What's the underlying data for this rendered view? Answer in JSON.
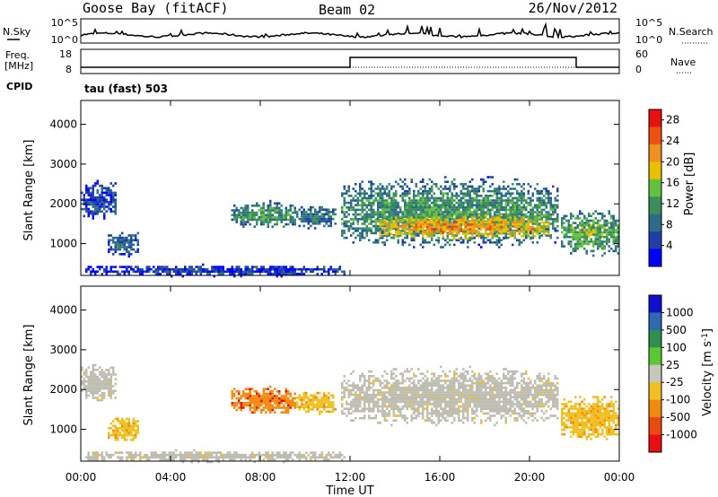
{
  "header": {
    "station": "Goose Bay (fitACF)",
    "beam": "Beam 02",
    "date": "26/Nov/2012"
  },
  "noise_panel": {
    "left_label": "N.Sky",
    "left_ticks": [
      "10^5",
      "10^0"
    ],
    "right_ticks": [
      "10^5",
      "10^0"
    ],
    "right_label": "N.Search"
  },
  "freq_panel": {
    "left_label_1": "Freq.",
    "left_label_2": "[MHz]",
    "left_ticks": [
      "18",
      "8"
    ],
    "right_ticks": [
      "60",
      "0"
    ],
    "right_label": "Nave",
    "cpid_label": "CPID",
    "cpid_value": "tau (fast) 503"
  },
  "colors": {
    "power": [
      "#0000ff",
      "#1f3fa8",
      "#2e6a8a",
      "#3a8f5a",
      "#66c040",
      "#e7c000",
      "#f09020",
      "#ee5010",
      "#e81010"
    ],
    "velocity": [
      "#1010d0",
      "#2e6ab0",
      "#2f8f4f",
      "#5ac832",
      "#c7c7bd",
      "#f0c020",
      "#f08a10",
      "#e84a10",
      "#e81010"
    ],
    "ground_scatter": "#bdbdb2",
    "frame": "#000000"
  },
  "chart_data": [
    {
      "type": "heatmap",
      "title": "",
      "quantity": "Power",
      "xlabel": "",
      "ylabel": "Slant Range [km]",
      "x_ticks": [
        "00:00",
        "04:00",
        "08:00",
        "12:00",
        "16:00",
        "20:00",
        "00:00"
      ],
      "xlim_hours": [
        0,
        24
      ],
      "y_ticks": [
        "1000",
        "2000",
        "3000",
        "4000"
      ],
      "ylim_km": [
        200,
        4600
      ],
      "colorbar_label": "Power [dB]",
      "colorbar_ticks": [
        "4",
        "8",
        "12",
        "16",
        "20",
        "24",
        "28"
      ],
      "colorbar_range": [
        0,
        30
      ],
      "regions": [
        {
          "t": [
            0.0,
            1.6
          ],
          "range_km": [
            1600,
            2600
          ],
          "value": 6
        },
        {
          "t": [
            1.2,
            2.6
          ],
          "range_km": [
            700,
            1350
          ],
          "value": 8
        },
        {
          "t": [
            0.2,
            11.8
          ],
          "range_km": [
            200,
            500
          ],
          "value": 5
        },
        {
          "t": [
            6.7,
            9.6
          ],
          "range_km": [
            1400,
            2100
          ],
          "value": 12
        },
        {
          "t": [
            9.6,
            11.4
          ],
          "range_km": [
            1400,
            2000
          ],
          "value": 10
        },
        {
          "t": [
            11.6,
            21.3
          ],
          "range_km": [
            900,
            2700
          ],
          "value": 12
        },
        {
          "t": [
            13.3,
            20.9
          ],
          "range_km": [
            1100,
            1800
          ],
          "value": 22
        },
        {
          "t": [
            21.4,
            24.0
          ],
          "range_km": [
            700,
            1900
          ],
          "value": 14
        }
      ]
    },
    {
      "type": "heatmap",
      "title": "",
      "quantity": "Velocity",
      "xlabel": "Time UT",
      "ylabel": "Slant Range [km]",
      "x_ticks": [
        "00:00",
        "04:00",
        "08:00",
        "12:00",
        "16:00",
        "20:00",
        "00:00"
      ],
      "xlim_hours": [
        0,
        24
      ],
      "y_ticks": [
        "1000",
        "2000",
        "3000",
        "4000"
      ],
      "ylim_km": [
        200,
        4600
      ],
      "colorbar_label": "Velocity [m s-1]",
      "colorbar_ticks": [
        "1000",
        "500",
        "100",
        "25",
        "-25",
        "-100",
        "-500",
        "-1000"
      ],
      "regions": [
        {
          "t": [
            0.0,
            1.6
          ],
          "range_km": [
            1700,
            2700
          ],
          "value": "ground"
        },
        {
          "t": [
            1.2,
            2.6
          ],
          "range_km": [
            700,
            1350
          ],
          "value": -100
        },
        {
          "t": [
            0.2,
            11.8
          ],
          "range_km": [
            200,
            500
          ],
          "value": "ground"
        },
        {
          "t": [
            6.7,
            9.6
          ],
          "range_km": [
            1400,
            2100
          ],
          "value": -500
        },
        {
          "t": [
            9.6,
            11.4
          ],
          "range_km": [
            1400,
            2000
          ],
          "value": -100
        },
        {
          "t": [
            11.6,
            21.3
          ],
          "range_km": [
            1100,
            2600
          ],
          "value": "ground"
        },
        {
          "t": [
            21.4,
            24.0
          ],
          "range_km": [
            700,
            1900
          ],
          "value": -100
        }
      ]
    }
  ]
}
